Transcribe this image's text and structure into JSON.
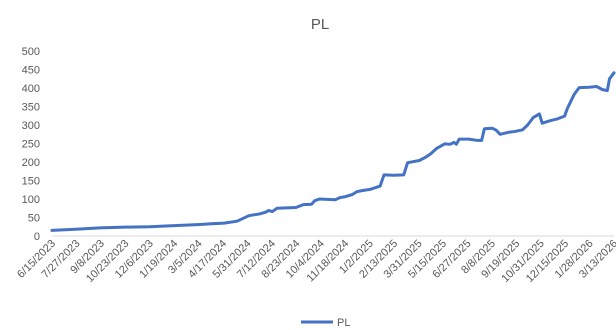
{
  "chart_data": {
    "type": "line",
    "title": "PL",
    "xlabel": "",
    "ylabel": "",
    "ylim": [
      0,
      500
    ],
    "yticks": [
      0,
      50,
      100,
      150,
      200,
      250,
      300,
      350,
      400,
      450,
      500
    ],
    "xtick_labels": [
      "6/15/2023",
      "7/27/2023",
      "9/8/2023",
      "10/23/2023",
      "12/6/2023",
      "1/19/2024",
      "3/5/2024",
      "4/17/2024",
      "5/31/2024",
      "7/12/2024",
      "8/23/2024",
      "10/4/2024",
      "11/18/2024",
      "1/2/2025",
      "2/13/2025",
      "3/31/2025",
      "5/15/2025",
      "6/27/2025",
      "8/8/2025",
      "9/19/2025",
      "10/31/2025",
      "12/15/2025",
      "1/28/2026",
      "3/13/2026"
    ],
    "grid": false,
    "legend_position": "bottom",
    "line_color": "#4472C4",
    "series": [
      {
        "name": "PL",
        "x": [
          "6/15/2023",
          "7/27/2023",
          "9/8/2023",
          "10/23/2023",
          "12/6/2023",
          "1/19/2024",
          "3/5/2024",
          "3/25/2024",
          "4/17/2024",
          "5/10/2024",
          "5/31/2024",
          "6/20/2024",
          "7/1/2024",
          "7/5/2024",
          "7/12/2024",
          "7/20/2024",
          "8/23/2024",
          "9/5/2024",
          "9/20/2024",
          "9/25/2024",
          "10/4/2024",
          "11/1/2024",
          "11/10/2024",
          "11/18/2024",
          "12/1/2024",
          "12/10/2024",
          "12/20/2024",
          "1/2/2025",
          "1/20/2025",
          "1/27/2025",
          "2/13/2025",
          "3/3/2025",
          "3/10/2025",
          "3/31/2025",
          "4/10/2025",
          "4/20/2025",
          "5/1/2025",
          "5/15/2025",
          "5/25/2025",
          "6/1/2025",
          "6/5/2025",
          "6/10/2025",
          "6/27/2025",
          "7/10/2025",
          "7/20/2025",
          "7/25/2025",
          "8/8/2025",
          "8/15/2025",
          "8/22/2025",
          "9/5/2025",
          "9/19/2025",
          "10/1/2025",
          "10/10/2025",
          "10/20/2025",
          "10/31/2025",
          "11/5/2025",
          "11/20/2025",
          "12/1/2025",
          "12/15/2025",
          "12/20/2025",
          "1/1/2026",
          "1/10/2026",
          "1/28/2026",
          "2/10/2026",
          "2/20/2026",
          "3/1/2026",
          "3/5/2026",
          "3/13/2026"
        ],
        "values": [
          15,
          18,
          22,
          24,
          25,
          28,
          31,
          33,
          35,
          40,
          55,
          60,
          65,
          69,
          66,
          75,
          77,
          85,
          86,
          95,
          100,
          98,
          104,
          106,
          112,
          120,
          123,
          126,
          135,
          165,
          164,
          165,
          198,
          204,
          212,
          222,
          237,
          249,
          248,
          253,
          248,
          262,
          262,
          259,
          258,
          290,
          291,
          286,
          275,
          280,
          283,
          287,
          300,
          320,
          330,
          305,
          312,
          316,
          324,
          345,
          383,
          401,
          402,
          404,
          396,
          393,
          425,
          441
        ]
      }
    ]
  }
}
